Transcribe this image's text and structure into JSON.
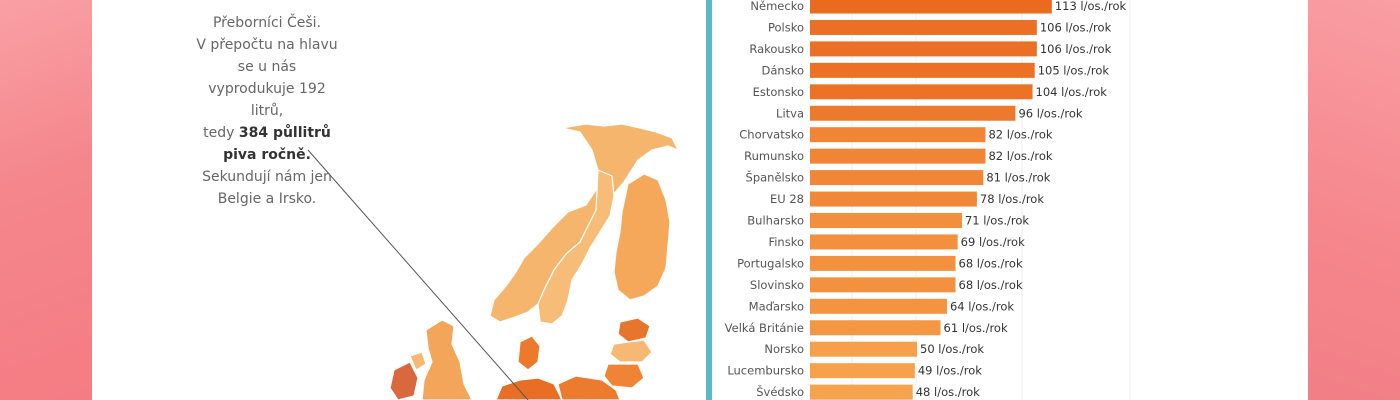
{
  "annotation": {
    "line1": "Přeborníci Češi.",
    "line2": "V přepočtu na hlavu se u nás",
    "line3": "vyprodukuje 192 litrů,",
    "line4_pre": "tedy ",
    "line4_bold": "384 půllitrů piva ročně.",
    "line5": "Sekundují nám jen",
    "line6": "Belgie a Irsko."
  },
  "colors": {
    "bar_dark": "#ea6a20",
    "bar_mid": "#f38a34",
    "bar_light": "#f7a24c",
    "accent": "#5bbac4",
    "background": "#f7858b"
  },
  "chart_data": {
    "type": "bar",
    "orientation": "horizontal",
    "unit": "l/os./rok",
    "categories": [
      "Německo",
      "Polsko",
      "Rakousko",
      "Dánsko",
      "Estonsko",
      "Litva",
      "Chorvatsko",
      "Rumunsko",
      "Španělsko",
      "EU 28",
      "Bulharsko",
      "Finsko",
      "Portugalsko",
      "Slovinsko",
      "Maďarsko",
      "Velká Británie",
      "Norsko",
      "Lucembursko",
      "Švédsko"
    ],
    "values": [
      113,
      106,
      106,
      105,
      104,
      96,
      82,
      82,
      81,
      78,
      71,
      69,
      68,
      68,
      64,
      61,
      50,
      49,
      48
    ],
    "labels": [
      "113 l/os./rok",
      "106 l/os./rok",
      "106 l/os./rok",
      "105 l/os./rok",
      "104 l/os./rok",
      "96 l/os./rok",
      "82 l/os./rok",
      "82 l/os./rok",
      "81 l/os./rok",
      "78 l/os./rok",
      "71 l/os./rok",
      "69 l/os./rok",
      "68 l/os./rok",
      "68 l/os./rok",
      "64 l/os./rok",
      "61 l/os./rok",
      "50 l/os./rok",
      "49 l/os./rok",
      "48 l/os./rok"
    ],
    "grid": true
  }
}
